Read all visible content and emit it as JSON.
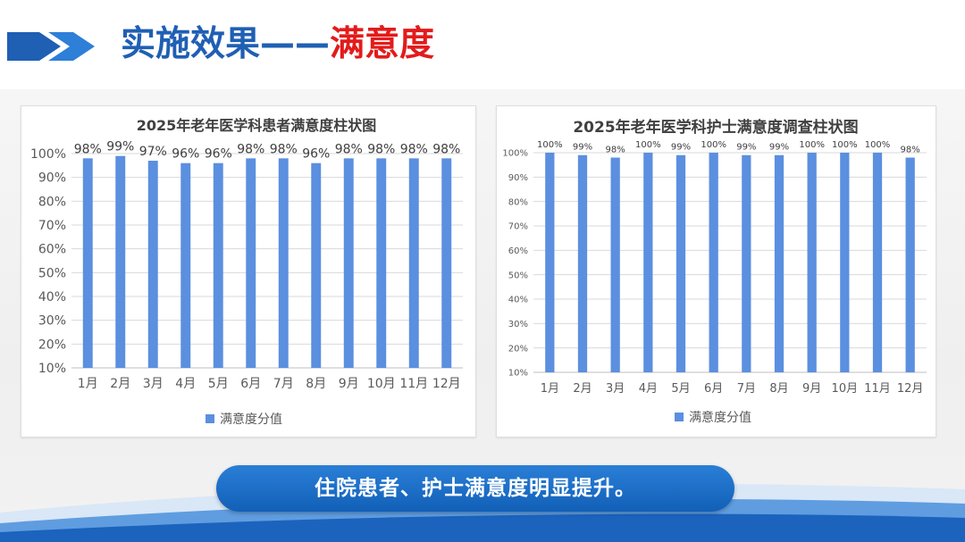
{
  "title": {
    "main": "实施效果",
    "dash": "——",
    "accent": "满意度"
  },
  "colors": {
    "brand_blue": "#1f5fb4",
    "accent_red": "#e31b1b",
    "bar_blue": "#5b8fdf"
  },
  "icons": [
    "double-chevron-right-icon"
  ],
  "chart_data": [
    {
      "type": "bar",
      "title": "2025年老年医学科患者满意度柱状图",
      "categories": [
        "1月",
        "2月",
        "3月",
        "4月",
        "5月",
        "6月",
        "7月",
        "8月",
        "9月",
        "10月",
        "11月",
        "12月"
      ],
      "series": [
        {
          "name": "满意度分值",
          "values": [
            98,
            99,
            97,
            96,
            96,
            98,
            98,
            96,
            98,
            98,
            98,
            98
          ]
        }
      ],
      "data_labels": [
        "98%",
        "99%",
        "97%",
        "96%",
        "96%",
        "98%",
        "98%",
        "96%",
        "98%",
        "98%",
        "98%",
        "98%"
      ],
      "yticks": [
        "10%",
        "20%",
        "30%",
        "40%",
        "50%",
        "60%",
        "70%",
        "80%",
        "90%",
        "100%"
      ],
      "ylim": [
        10,
        100
      ],
      "grid": true,
      "legend": "bottom"
    },
    {
      "type": "bar",
      "title": "2025年老年医学科护士满意度调查柱状图",
      "categories": [
        "1月",
        "2月",
        "3月",
        "4月",
        "5月",
        "6月",
        "7月",
        "8月",
        "9月",
        "10月",
        "11月",
        "12月"
      ],
      "series": [
        {
          "name": "满意度分值",
          "values": [
            100,
            99,
            98,
            100,
            99,
            100,
            99,
            99,
            100,
            100,
            100,
            98
          ]
        }
      ],
      "data_labels": [
        "100%",
        "99%",
        "98%",
        "100%",
        "99%",
        "100%",
        "99%",
        "99%",
        "100%",
        "100%",
        "100%",
        "98%"
      ],
      "yticks": [
        "10%",
        "20%",
        "30%",
        "40%",
        "50%",
        "60%",
        "70%",
        "80%",
        "90%",
        "100%"
      ],
      "ylim": [
        10,
        100
      ],
      "grid": true,
      "legend": "bottom"
    }
  ],
  "conclusion": "住院患者、护士满意度明显提升。"
}
